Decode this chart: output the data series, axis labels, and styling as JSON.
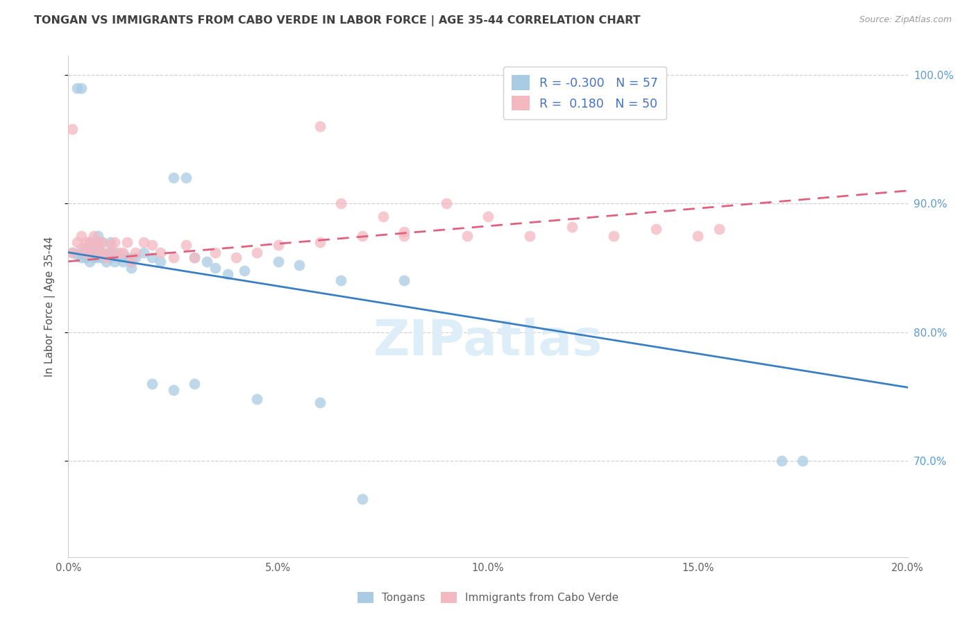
{
  "title": "TONGAN VS IMMIGRANTS FROM CABO VERDE IN LABOR FORCE | AGE 35-44 CORRELATION CHART",
  "source": "Source: ZipAtlas.com",
  "ylabel": "In Labor Force | Age 35-44",
  "legend_label1": "Tongans",
  "legend_label2": "Immigrants from Cabo Verde",
  "R1": -0.3,
  "N1": 57,
  "R2": 0.18,
  "N2": 50,
  "color1": "#a8cce4",
  "color2": "#f4b8c1",
  "trend_color1": "#3a7fc1",
  "trend_color2": "#e0607e",
  "xmin": 0.0,
  "xmax": 0.2,
  "ymin": 0.625,
  "ymax": 1.015,
  "yticks": [
    0.7,
    0.8,
    0.9,
    1.0
  ],
  "xticks": [
    0.0,
    0.05,
    0.1,
    0.15,
    0.2
  ],
  "blue_x": [
    0.001,
    0.002,
    0.002,
    0.003,
    0.003,
    0.003,
    0.004,
    0.004,
    0.005,
    0.005,
    0.005,
    0.006,
    0.006,
    0.006,
    0.007,
    0.007,
    0.007,
    0.007,
    0.008,
    0.008,
    0.008,
    0.009,
    0.009,
    0.01,
    0.01,
    0.01,
    0.011,
    0.011,
    0.012,
    0.013,
    0.013,
    0.014,
    0.015,
    0.015,
    0.016,
    0.018,
    0.02,
    0.022,
    0.025,
    0.028,
    0.03,
    0.033,
    0.035,
    0.038,
    0.042,
    0.05,
    0.055,
    0.065,
    0.07,
    0.08,
    0.06,
    0.045,
    0.03,
    0.17,
    0.175,
    0.02,
    0.025
  ],
  "blue_y": [
    0.862,
    0.86,
    0.99,
    0.99,
    0.862,
    0.858,
    0.865,
    0.858,
    0.87,
    0.862,
    0.855,
    0.868,
    0.862,
    0.858,
    0.875,
    0.87,
    0.865,
    0.858,
    0.862,
    0.87,
    0.858,
    0.86,
    0.855,
    0.862,
    0.87,
    0.858,
    0.862,
    0.855,
    0.858,
    0.86,
    0.855,
    0.858,
    0.855,
    0.85,
    0.858,
    0.862,
    0.858,
    0.855,
    0.92,
    0.92,
    0.858,
    0.855,
    0.85,
    0.845,
    0.848,
    0.855,
    0.852,
    0.84,
    0.67,
    0.84,
    0.745,
    0.748,
    0.76,
    0.7,
    0.7,
    0.76,
    0.755
  ],
  "pink_x": [
    0.001,
    0.001,
    0.002,
    0.003,
    0.003,
    0.004,
    0.004,
    0.005,
    0.005,
    0.006,
    0.006,
    0.007,
    0.007,
    0.008,
    0.008,
    0.009,
    0.01,
    0.01,
    0.011,
    0.012,
    0.013,
    0.014,
    0.015,
    0.016,
    0.018,
    0.02,
    0.022,
    0.025,
    0.028,
    0.03,
    0.035,
    0.04,
    0.045,
    0.05,
    0.06,
    0.065,
    0.07,
    0.075,
    0.08,
    0.09,
    0.1,
    0.11,
    0.12,
    0.13,
    0.14,
    0.15,
    0.155,
    0.06,
    0.08,
    0.095
  ],
  "pink_y": [
    0.862,
    0.958,
    0.87,
    0.875,
    0.865,
    0.87,
    0.862,
    0.87,
    0.862,
    0.875,
    0.868,
    0.87,
    0.862,
    0.87,
    0.862,
    0.858,
    0.868,
    0.862,
    0.87,
    0.862,
    0.862,
    0.87,
    0.855,
    0.862,
    0.87,
    0.868,
    0.862,
    0.858,
    0.868,
    0.858,
    0.862,
    0.858,
    0.862,
    0.868,
    0.87,
    0.9,
    0.875,
    0.89,
    0.875,
    0.9,
    0.89,
    0.875,
    0.882,
    0.875,
    0.88,
    0.875,
    0.88,
    0.96,
    0.878,
    0.875
  ],
  "blue_trend_x": [
    0.0,
    0.2
  ],
  "blue_trend_y": [
    0.862,
    0.757
  ],
  "pink_trend_x": [
    0.0,
    0.2
  ],
  "pink_trend_y": [
    0.855,
    0.91
  ],
  "background_color": "#ffffff",
  "grid_color": "#d0d0d0",
  "title_color": "#404040",
  "axis_label_color": "#505050",
  "right_axis_color": "#5b9bd5",
  "watermark": "ZIPatlas",
  "watermark_color": "#ddeef8"
}
